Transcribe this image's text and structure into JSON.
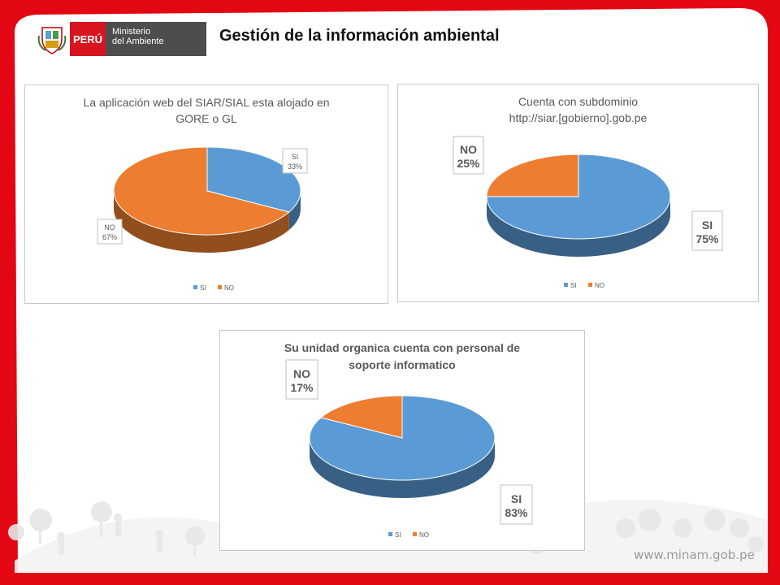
{
  "header": {
    "title": "Gestión de la información ambiental",
    "logo_country": "PERÚ",
    "logo_line1": "Ministerio",
    "logo_line2": "del Ambiente"
  },
  "footer": {
    "url": "www.minam.gob.pe"
  },
  "colors": {
    "si": "#5b9bd5",
    "no": "#ed7d31",
    "brand_red": "#e30613"
  },
  "chart_data": [
    {
      "type": "pie",
      "title": "La aplicación web del SIAR/SIAL esta alojado en GORE o GL",
      "title_lines": [
        "La aplicación web del SIAR/SIAL esta alojado en",
        "GORE o GL"
      ],
      "categories": [
        "SI",
        "NO"
      ],
      "values": [
        33,
        67
      ],
      "labels": [
        "33%",
        "67%"
      ],
      "legend": [
        "SI",
        "NO"
      ],
      "legend_position": "bottom"
    },
    {
      "type": "pie",
      "title": "Cuenta con subdominio http://siar.[gobierno].gob.pe",
      "title_lines": [
        "Cuenta con subdominio",
        "http://siar.[gobierno].gob.pe"
      ],
      "categories": [
        "SI",
        "NO"
      ],
      "values": [
        75,
        25
      ],
      "labels": [
        "75%",
        "25%"
      ],
      "legend": [
        "SI",
        "NO"
      ],
      "legend_position": "bottom"
    },
    {
      "type": "pie",
      "title": "Su unidad organica cuenta con personal de soporte informatico",
      "title_lines": [
        "Su unidad organica cuenta con personal de",
        "soporte informatico"
      ],
      "categories": [
        "SI",
        "NO"
      ],
      "values": [
        83,
        17
      ],
      "labels": [
        "83%",
        "17%"
      ],
      "legend": [
        "SI",
        "NO"
      ],
      "legend_position": "bottom"
    }
  ]
}
